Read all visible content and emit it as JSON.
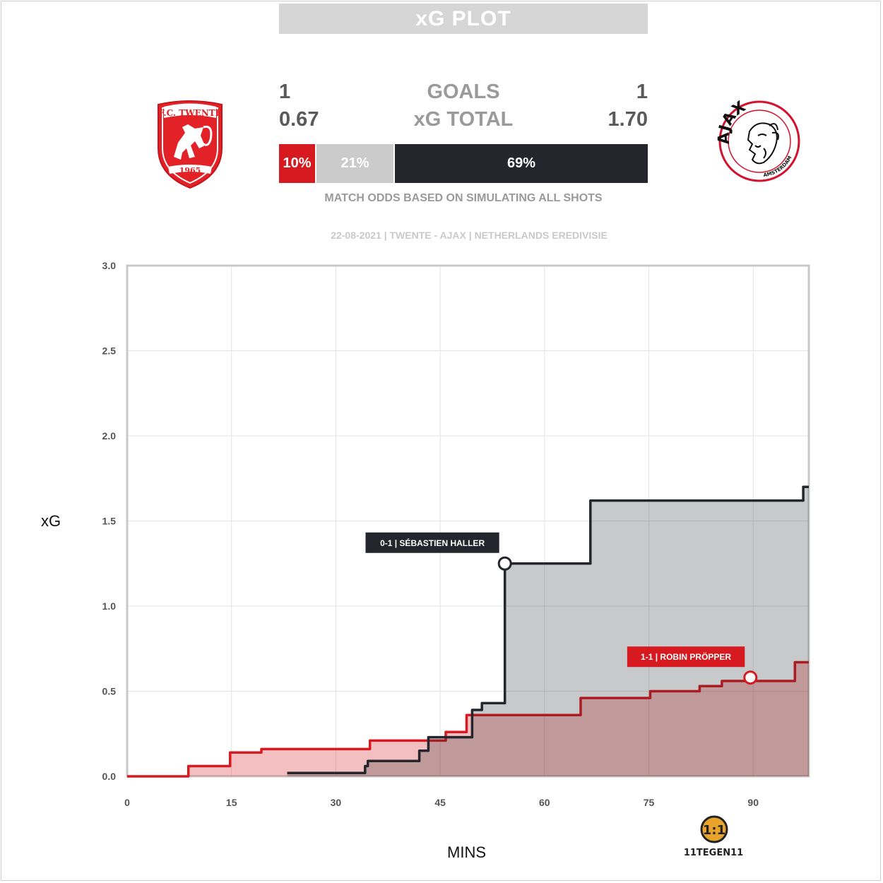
{
  "header": {
    "title": "xG PLOT",
    "home": {
      "goals": "1",
      "xg_total": "0.67",
      "win_pct": "10%",
      "color": "#d71920"
    },
    "away": {
      "goals": "1",
      "xg_total": "1.70",
      "win_pct": "69%",
      "color": "#25262d"
    },
    "draw_pct": "21%",
    "goals_label": "GOALS",
    "xg_label": "xG TOTAL",
    "odds_note": "MATCH ODDS BASED ON SIMULATING ALL SHOTS",
    "match_info": "22-08-2021 | TWENTE - AJAX | NETHERLANDS EREDIVISIE"
  },
  "logos": {
    "home_icon": "fc-twente-crest-icon",
    "home_text": "F.C. TWENTE",
    "home_year": "1965",
    "away_icon": "ajax-crest-icon",
    "away_text": "AJAX",
    "away_sub": "AMSTERDAM",
    "brand_icon": "11tegen11-logo-icon",
    "brand_text": "11TEGEN11"
  },
  "chart_data": {
    "type": "line",
    "xlabel": "MINS",
    "ylabel": "xG",
    "xlim": [
      0,
      98
    ],
    "ylim": [
      0,
      3.0
    ],
    "x_ticks": [
      0,
      15,
      30,
      45,
      60,
      75,
      90
    ],
    "y_ticks": [
      "0.0",
      "0.5",
      "1.0",
      "1.5",
      "2.0",
      "2.5",
      "3.0"
    ],
    "grid": true,
    "series": [
      {
        "color": "#d71920",
        "fill": "rgba(215,25,32,0.28)",
        "steps": [
          [
            0,
            0
          ],
          [
            8.8,
            0.06
          ],
          [
            14.8,
            0.14
          ],
          [
            19.3,
            0.16
          ],
          [
            34.9,
            0.21
          ],
          [
            45.8,
            0.26
          ],
          [
            48.8,
            0.36
          ],
          [
            65.2,
            0.46
          ],
          [
            75.2,
            0.5
          ],
          [
            82.3,
            0.53
          ],
          [
            85.5,
            0.56
          ],
          [
            96,
            0.67
          ]
        ],
        "end_x": 98
      },
      {
        "color": "#25262d",
        "fill": "rgba(37,38,45,0.25)",
        "steps": [
          [
            23.0,
            0.02
          ],
          [
            34.2,
            0.06
          ],
          [
            34.6,
            0.09
          ],
          [
            42.0,
            0.15
          ],
          [
            43.3,
            0.23
          ],
          [
            49.6,
            0.39
          ],
          [
            51.0,
            0.43
          ],
          [
            54.3,
            1.25
          ],
          [
            66.6,
            1.62
          ],
          [
            97.2,
            1.7
          ]
        ],
        "end_x": 98
      }
    ],
    "annotations": [
      {
        "label": "0-1 | SÉBASTIEN HALLER",
        "x": 54.3,
        "y": 1.25,
        "color": "#25262d",
        "series": 1
      },
      {
        "label": "1-1 | ROBIN PRÖPPER",
        "x": 89.6,
        "y": 0.58,
        "color": "#d71920",
        "series": 0
      }
    ]
  }
}
